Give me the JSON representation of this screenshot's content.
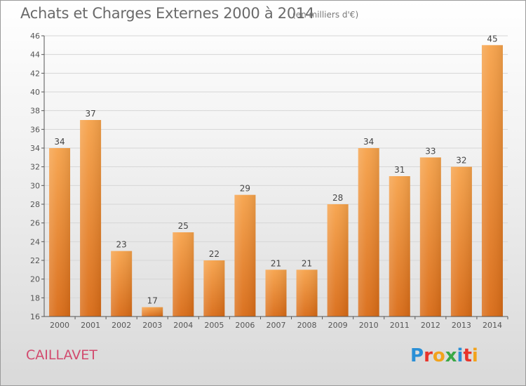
{
  "header": {
    "title": "Achats et Charges Externes 2000 à 2014",
    "subtitle": "(en milliers d'€)"
  },
  "footer": {
    "commune": "CAILLAVET",
    "logo_text": "Proxiti"
  },
  "colors": {
    "bar_top": "#f6a24a",
    "bar_bottom": "#d96b16",
    "grid": "#d6d6d6",
    "title": "#6a6a6a",
    "commune": "#d24a6e"
  },
  "chart_data": {
    "type": "bar",
    "categories": [
      "2000",
      "2001",
      "2002",
      "2003",
      "2004",
      "2005",
      "2006",
      "2007",
      "2008",
      "2009",
      "2010",
      "2011",
      "2012",
      "2013",
      "2014"
    ],
    "values": [
      34,
      37,
      23,
      17,
      25,
      22,
      29,
      21,
      21,
      28,
      34,
      31,
      33,
      32,
      45
    ],
    "ylim": [
      16,
      46
    ],
    "yticks": [
      16,
      18,
      20,
      22,
      24,
      26,
      28,
      30,
      32,
      34,
      36,
      38,
      40,
      42,
      44,
      46
    ],
    "grid": true,
    "legend": "none"
  }
}
